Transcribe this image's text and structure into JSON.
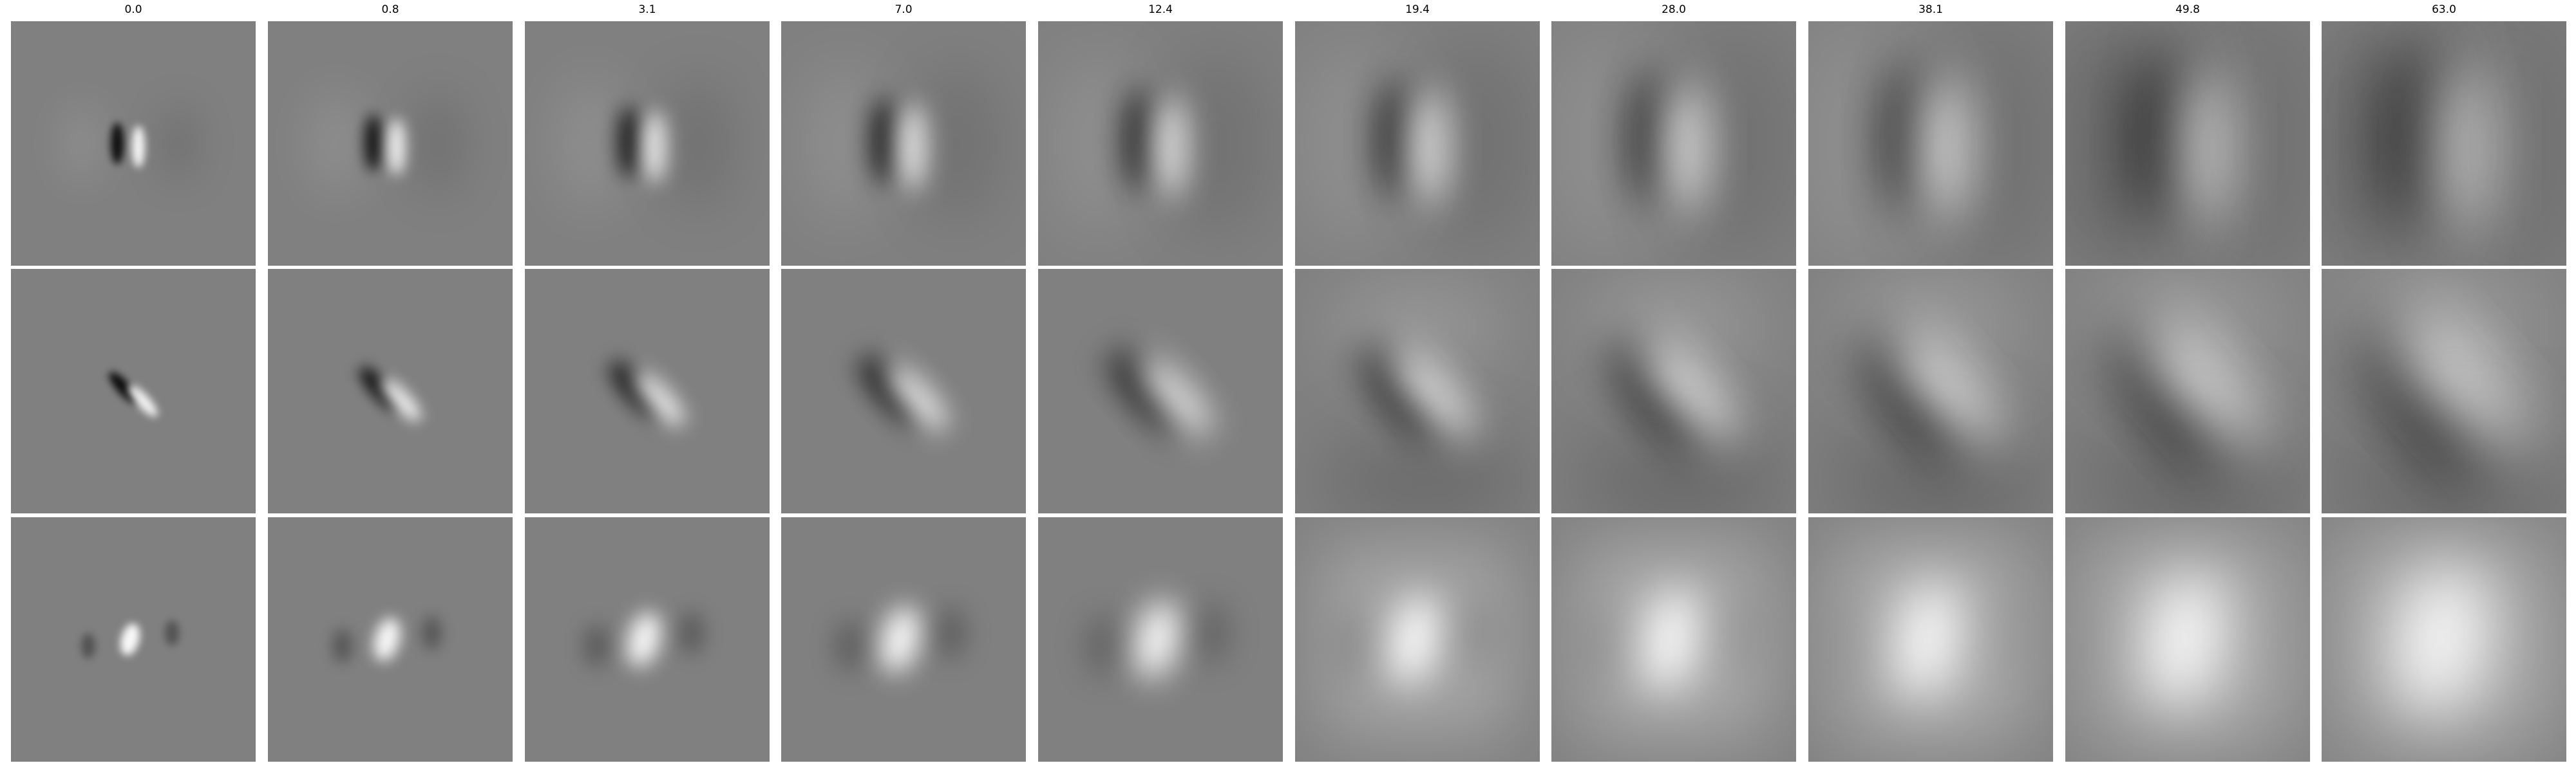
{
  "grid": {
    "column_titles": [
      "0.0",
      "0.8",
      "3.1",
      "7.0",
      "12.4",
      "19.4",
      "28.0",
      "38.1",
      "49.8",
      "63.0"
    ],
    "row_count": 3
  },
  "colors": {
    "background": "#ffffff",
    "neutral_gray": "#808080",
    "black": "#000000",
    "white": "#ffffff"
  }
}
